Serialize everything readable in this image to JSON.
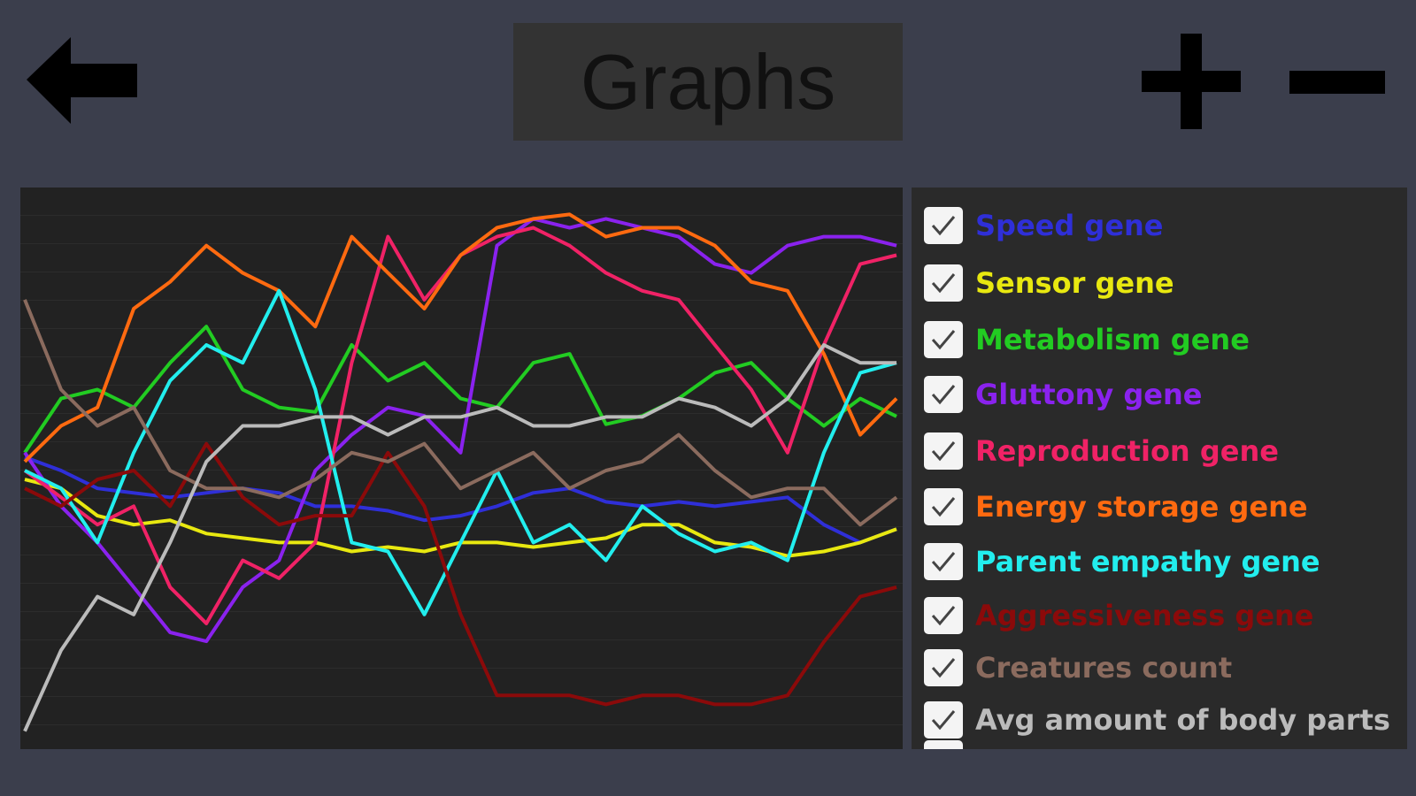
{
  "header": {
    "title": "Graphs"
  },
  "chart_data": {
    "type": "line",
    "ylim": [
      0,
      100
    ],
    "series": [
      {
        "name": "Speed gene",
        "color": "#2f2fd8",
        "values": [
          52,
          49.6,
          46.4,
          45.6,
          44.8,
          45.6,
          46.4,
          45.6,
          43.2,
          43.2,
          42.4,
          40.7,
          41.5,
          43.2,
          45.6,
          46.4,
          44,
          43.2,
          44,
          43.2,
          44,
          44.8,
          39.9,
          36.7,
          39.1
        ]
      },
      {
        "name": "Sensor gene",
        "color": "#e8e810",
        "values": [
          48,
          46.4,
          41.5,
          39.9,
          40.7,
          38.3,
          37.5,
          36.7,
          36.7,
          35.1,
          35.9,
          35.1,
          36.7,
          36.7,
          35.9,
          36.7,
          37.5,
          39.9,
          39.9,
          36.7,
          35.9,
          34.3,
          35.1,
          36.7,
          39.1
        ]
      },
      {
        "name": "Metabolism gene",
        "color": "#22cc22",
        "values": [
          52.8,
          62.5,
          64.1,
          60.9,
          68.9,
          75.4,
          64.1,
          60.9,
          60.1,
          72.1,
          65.7,
          68.9,
          62.5,
          60.9,
          68.9,
          70.5,
          57.9,
          59.4,
          62.5,
          67.1,
          68.9,
          62.5,
          57.6,
          62.5,
          59.3
        ]
      },
      {
        "name": "Gluttony gene",
        "color": "#8a22ee",
        "values": [
          52.8,
          43.2,
          36.7,
          28.7,
          20.6,
          19,
          28.7,
          33.5,
          49.6,
          56,
          60.9,
          59.4,
          52.8,
          89.9,
          94.7,
          93.1,
          94.7,
          93.1,
          91.5,
          86.6,
          85,
          89.9,
          91.5,
          91.5,
          89.9
        ]
      },
      {
        "name": "Reproduction gene",
        "color": "#f02266",
        "values": [
          49.6,
          44.8,
          39.9,
          43.2,
          28.7,
          22.2,
          33.5,
          30.3,
          36.7,
          68.9,
          91.5,
          80.2,
          88.2,
          91.5,
          93.1,
          89.9,
          85,
          81.8,
          80.2,
          72.1,
          64.1,
          52.8,
          72.1,
          86.6,
          88.2
        ]
      },
      {
        "name": "Energy storage gene",
        "color": "#ff6a10",
        "values": [
          51.2,
          57.6,
          60.9,
          78.6,
          83.4,
          89.9,
          85,
          81.8,
          75.4,
          91.5,
          85,
          78.6,
          88.2,
          93.1,
          94.7,
          95.5,
          91.5,
          93.1,
          93.1,
          89.9,
          83.4,
          81.8,
          70.5,
          56,
          62.5
        ]
      },
      {
        "name": "Parent empathy gene",
        "color": "#22eeee",
        "values": [
          49.6,
          46.4,
          36.7,
          52.8,
          65.7,
          72.1,
          68.9,
          81.8,
          64.1,
          36.7,
          35.1,
          23.8,
          36.7,
          49.6,
          36.7,
          39.9,
          33.5,
          43.2,
          38.3,
          35.1,
          36.7,
          33.5,
          52.8,
          67.1,
          68.9
        ]
      },
      {
        "name": "Aggressiveness gene",
        "color": "#8b0a0a",
        "values": [
          46.4,
          43.2,
          48,
          49.6,
          43.2,
          54.4,
          44.8,
          39.9,
          41.5,
          41.5,
          52.8,
          43.2,
          23.8,
          9.3,
          9.3,
          9.3,
          7.7,
          9.3,
          9.3,
          7.7,
          7.7,
          9.3,
          18.9,
          27,
          28.7
        ]
      },
      {
        "name": "Creatures count",
        "color": "#8b6b5e",
        "values": [
          80.2,
          64.1,
          57.6,
          60.9,
          49.6,
          46.4,
          46.4,
          44.8,
          48,
          52.8,
          51.2,
          54.4,
          46.4,
          49.6,
          52.8,
          46.4,
          49.6,
          51.2,
          56,
          49.6,
          44.8,
          46.4,
          46.4,
          39.9,
          44.8
        ]
      },
      {
        "name": "Avg amount of body parts",
        "color": "#bbbbbb",
        "values": [
          2.9,
          17.4,
          27,
          23.8,
          36.7,
          51.2,
          57.6,
          57.6,
          59.2,
          59.2,
          56,
          59.2,
          59.2,
          60.9,
          57.6,
          57.6,
          59.2,
          59.2,
          62.5,
          60.9,
          57.6,
          62.5,
          72.1,
          68.9,
          68.9
        ]
      }
    ]
  }
}
